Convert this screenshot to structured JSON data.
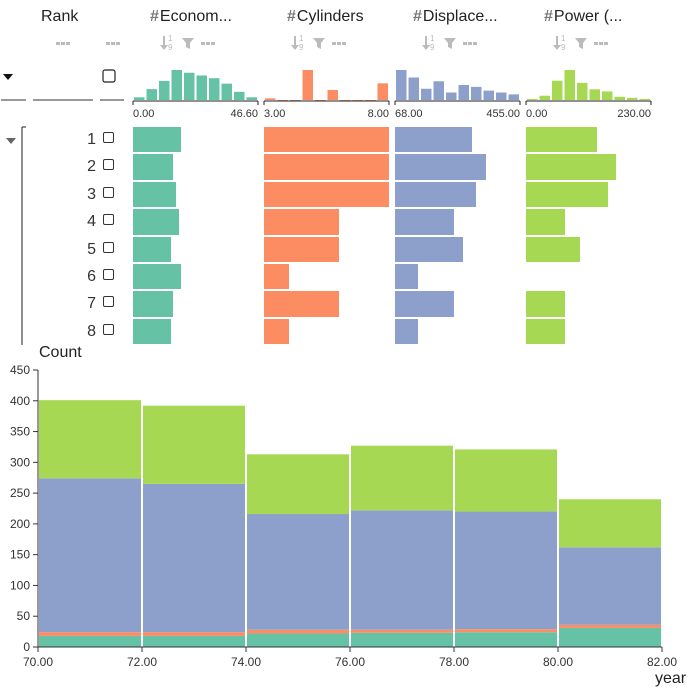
{
  "columns": {
    "rank": {
      "title": "Rank"
    },
    "economy": {
      "title": "Econom...",
      "min_label": "0.00",
      "max_label": "46.60",
      "color": "#66c2a5"
    },
    "cylinders": {
      "title": "Cylinders",
      "min_label": "3.00",
      "max_label": "8.00",
      "color": "#fc8d62"
    },
    "displacement": {
      "title": "Displace...",
      "min_label": "68.00",
      "max_label": "455.00",
      "color": "#8da0cb"
    },
    "power": {
      "title": "Power (...",
      "min_label": "0.00",
      "max_label": "230.00",
      "color": "#a6d854"
    }
  },
  "icons": [
    "sort-numeric-icon",
    "filter-icon",
    "more-icon",
    "hash-icon",
    "collapse-caret-icon"
  ],
  "histograms": {
    "economy": [
      2,
      8,
      14,
      22,
      20,
      18,
      16,
      12,
      6,
      2
    ],
    "cylinders": [
      1,
      0,
      0,
      18,
      0,
      6,
      0,
      0,
      0,
      10
    ],
    "displacement": [
      16,
      12,
      6,
      10,
      4,
      8,
      7,
      5,
      4,
      3
    ],
    "power": [
      1,
      4,
      18,
      28,
      16,
      10,
      8,
      3,
      2,
      1
    ]
  },
  "rows": {
    "ranks": [
      "1",
      "2",
      "3",
      "4",
      "5",
      "6",
      "7",
      "8"
    ],
    "economy": [
      18,
      15,
      16,
      17,
      14,
      18,
      15,
      14
    ],
    "cylinders": [
      8,
      8,
      8,
      6,
      6,
      4,
      6,
      4
    ],
    "displacement": [
      307,
      350,
      318,
      250,
      280,
      140,
      250,
      140
    ],
    "power": [
      130,
      165,
      150,
      72,
      100,
      null,
      72,
      72
    ]
  },
  "chart_data": {
    "type": "bar",
    "stacked": true,
    "ylabel": "Count",
    "xlabel": "year",
    "xlim": [
      70,
      82
    ],
    "ylim": [
      0,
      450
    ],
    "x_ticks": [
      "70.00",
      "72.00",
      "74.00",
      "76.00",
      "78.00",
      "80.00",
      "82.00"
    ],
    "y_ticks": [
      "0",
      "50",
      "100",
      "150",
      "200",
      "250",
      "300",
      "350",
      "400",
      "450"
    ],
    "bins": [
      [
        70,
        72
      ],
      [
        72,
        74
      ],
      [
        74,
        76
      ],
      [
        76,
        78
      ],
      [
        78,
        80
      ],
      [
        80,
        82
      ]
    ],
    "series": [
      {
        "key": "economy",
        "color": "#66c2a5",
        "values": [
          18,
          18,
          22,
          23,
          24,
          31
        ]
      },
      {
        "key": "cylinders",
        "color": "#fc8d62",
        "values": [
          6,
          6,
          6,
          5,
          5,
          5
        ]
      },
      {
        "key": "displacement",
        "color": "#8da0cb",
        "values": [
          250,
          241,
          188,
          194,
          191,
          126
        ]
      },
      {
        "key": "power",
        "color": "#a6d854",
        "values": [
          127,
          127,
          97,
          105,
          101,
          78
        ]
      }
    ]
  }
}
